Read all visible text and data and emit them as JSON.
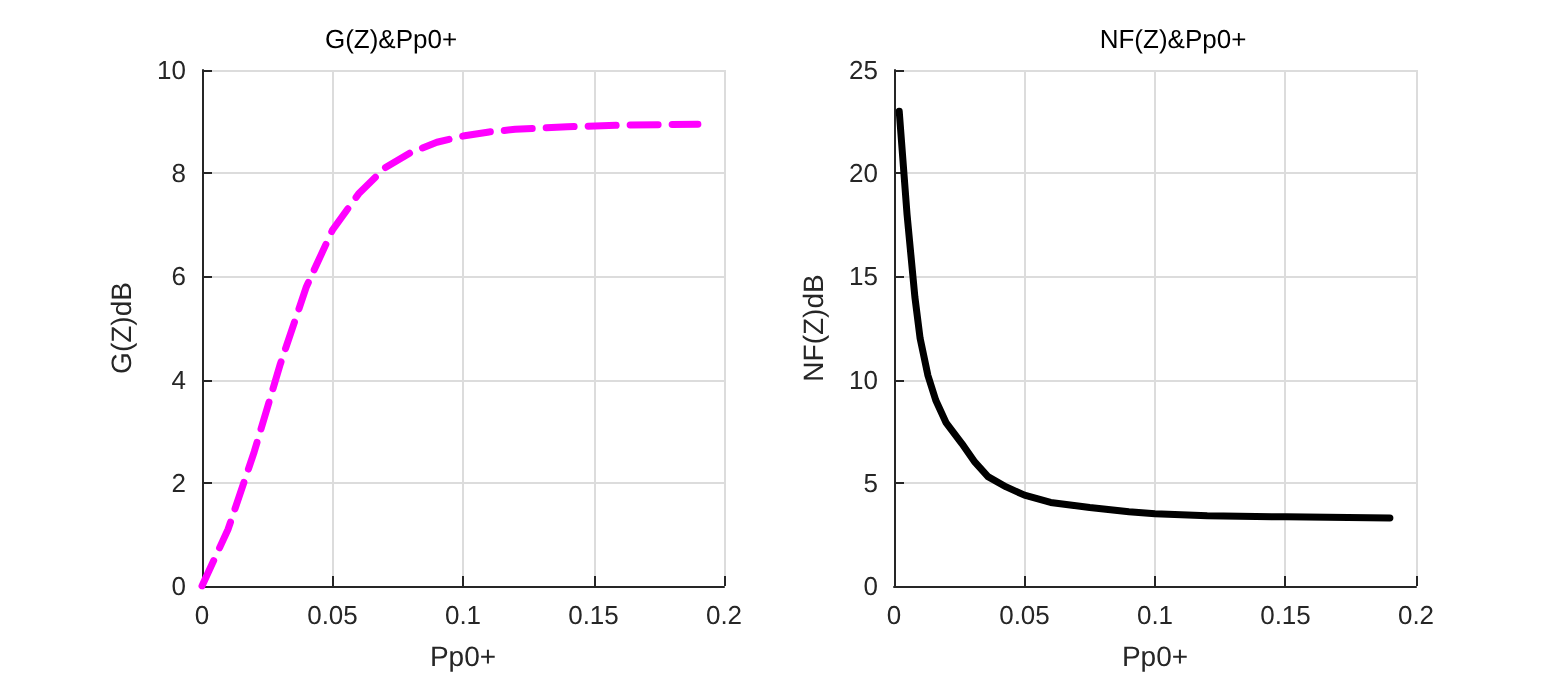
{
  "chart_data": [
    {
      "type": "line",
      "title": "G(Z)&Pp0+",
      "xlabel": "Pp0+",
      "ylabel": "G(Z)dB",
      "xlim": [
        0,
        0.2
      ],
      "ylim": [
        0,
        10
      ],
      "xticks": [
        0,
        0.05,
        0.1,
        0.15,
        0.2
      ],
      "yticks": [
        0,
        2,
        4,
        6,
        8,
        10
      ],
      "grid": true,
      "line_style": "dashed",
      "series": [
        {
          "color": "#ff00ff",
          "x": [
            0,
            0.01,
            0.02,
            0.03,
            0.04,
            0.05,
            0.06,
            0.07,
            0.08,
            0.09,
            0.1,
            0.11,
            0.12,
            0.14,
            0.16,
            0.19
          ],
          "values": [
            0,
            1.1,
            2.6,
            4.3,
            5.8,
            6.9,
            7.6,
            8.1,
            8.4,
            8.6,
            8.72,
            8.8,
            8.85,
            8.9,
            8.93,
            8.95
          ]
        }
      ]
    },
    {
      "type": "line",
      "title": "NF(Z)&Pp0+",
      "xlabel": "Pp0+",
      "ylabel": "NF(Z)dB",
      "xlim": [
        0,
        0.2
      ],
      "ylim": [
        0,
        25
      ],
      "xticks": [
        0,
        0.05,
        0.1,
        0.15,
        0.2
      ],
      "yticks": [
        0,
        5,
        10,
        15,
        20,
        25
      ],
      "grid": true,
      "line_style": "solid",
      "series": [
        {
          "color": "#000000",
          "x": [
            0.002,
            0.005,
            0.008,
            0.01,
            0.013,
            0.016,
            0.02,
            0.026,
            0.031,
            0.036,
            0.043,
            0.05,
            0.06,
            0.075,
            0.09,
            0.1,
            0.12,
            0.15,
            0.19
          ],
          "values": [
            23,
            18,
            14,
            12,
            10.2,
            9,
            7.9,
            6.9,
            6,
            5.3,
            4.8,
            4.4,
            4.05,
            3.8,
            3.6,
            3.5,
            3.4,
            3.35,
            3.3
          ]
        }
      ]
    }
  ]
}
